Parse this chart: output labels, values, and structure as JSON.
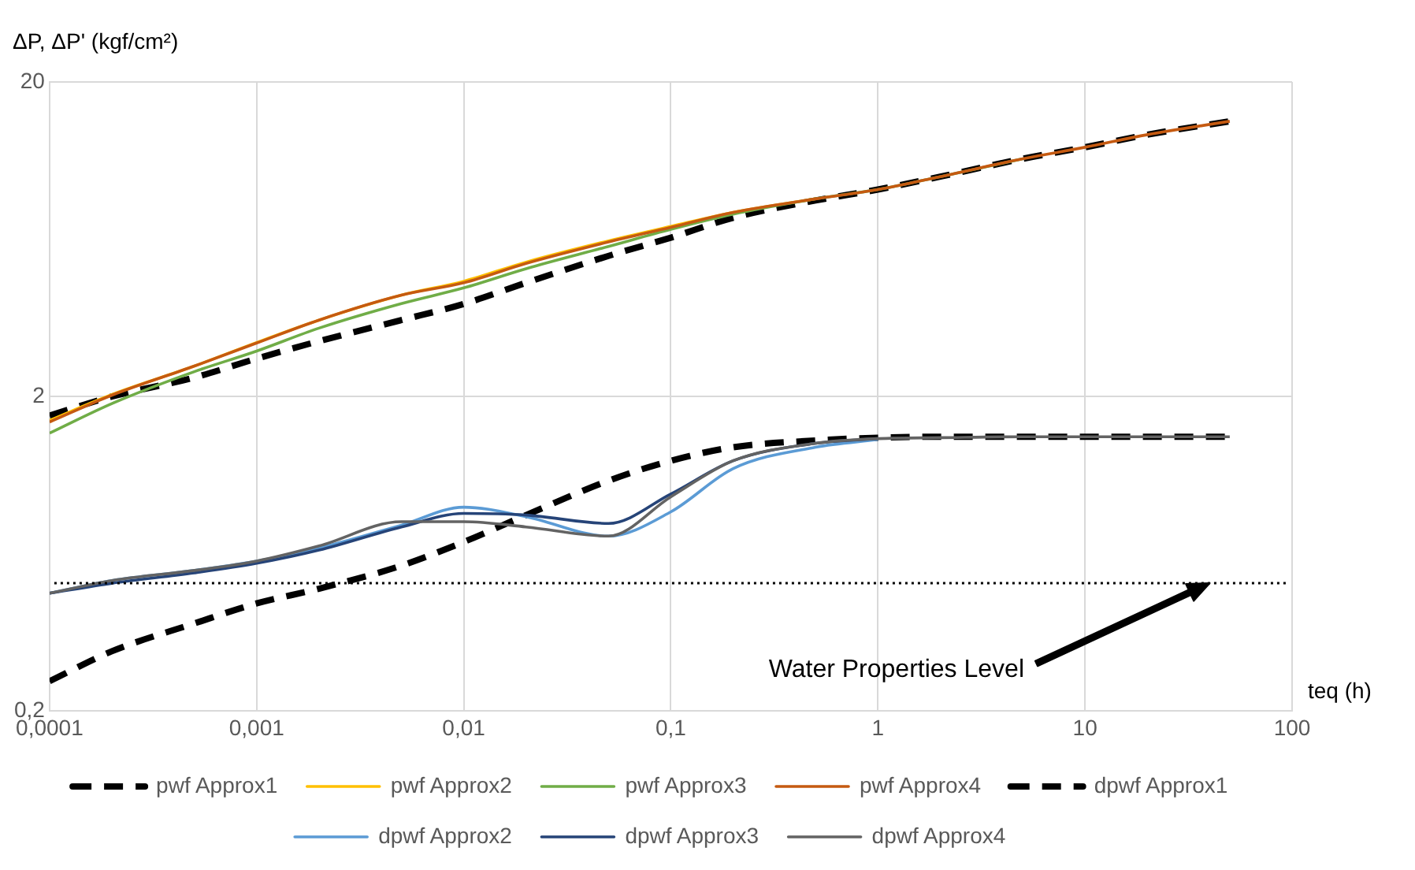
{
  "chart_data": {
    "type": "line",
    "xlabel": "teq (h)",
    "ylabel": "ΔP, ΔP' (kgf/cm²)",
    "x": [
      0.0001,
      0.0002,
      0.0005,
      0.001,
      0.002,
      0.005,
      0.01,
      0.02,
      0.05,
      0.1,
      0.2,
      0.5,
      1,
      2,
      5,
      10,
      20,
      50
    ],
    "series": [
      {
        "name": "pwf Approx1",
        "color": "#000000",
        "line_style": "dashed",
        "values": [
          1.74,
          2.0,
          2.3,
          2.64,
          3.0,
          3.5,
          3.94,
          4.6,
          5.6,
          6.4,
          7.4,
          8.4,
          9.1,
          10.0,
          11.4,
          12.4,
          13.6,
          15.0
        ]
      },
      {
        "name": "pwf Approx2",
        "color": "#ffc000",
        "line_style": "solid",
        "values": [
          1.68,
          2.03,
          2.5,
          2.97,
          3.5,
          4.2,
          4.65,
          5.35,
          6.25,
          6.95,
          7.7,
          8.5,
          null,
          null,
          null,
          null,
          null,
          null
        ]
      },
      {
        "name": "pwf Approx3",
        "color": "#70ad47",
        "line_style": "solid",
        "values": [
          1.53,
          1.9,
          2.4,
          2.79,
          3.3,
          3.95,
          4.43,
          5.1,
          6.0,
          6.8,
          7.6,
          8.5,
          9.1,
          10.0,
          11.4,
          null,
          null,
          null
        ]
      },
      {
        "name": "pwf Approx4",
        "color": "#c55a11",
        "line_style": "solid",
        "values": [
          1.66,
          2.02,
          2.5,
          2.96,
          3.5,
          4.2,
          4.6,
          5.3,
          6.2,
          6.9,
          7.7,
          8.5,
          9.1,
          10.0,
          11.4,
          12.4,
          13.6,
          15.0
        ]
      },
      {
        "name": "dpwf Approx1",
        "color": "#000000",
        "line_style": "dashed",
        "values": [
          0.249,
          0.31,
          0.38,
          0.44,
          0.49,
          0.58,
          0.69,
          0.84,
          1.08,
          1.25,
          1.38,
          1.45,
          1.48,
          1.49,
          1.49,
          1.49,
          1.49,
          1.49
        ]
      },
      {
        "name": "dpwf Approx2",
        "color": "#5b9bd5",
        "line_style": "solid",
        "values": [
          0.474,
          0.52,
          0.56,
          0.6,
          0.66,
          0.78,
          0.89,
          0.83,
          0.72,
          0.86,
          1.18,
          1.38,
          1.46,
          null,
          null,
          null,
          null,
          null
        ]
      },
      {
        "name": "dpwf Approx3",
        "color": "#264478",
        "line_style": "solid",
        "values": [
          0.474,
          0.51,
          0.55,
          0.59,
          0.65,
          0.77,
          0.85,
          0.84,
          0.79,
          0.98,
          1.25,
          1.42,
          1.47,
          null,
          null,
          null,
          null,
          null
        ]
      },
      {
        "name": "dpwf Approx4",
        "color": "#636363",
        "line_style": "solid",
        "values": [
          0.474,
          0.52,
          0.56,
          0.6,
          0.67,
          0.8,
          0.8,
          0.77,
          0.72,
          0.96,
          1.25,
          1.42,
          1.47,
          1.48,
          1.49,
          1.49,
          1.49,
          1.49
        ]
      }
    ],
    "log": "xy",
    "xlim": [
      0.0001,
      100
    ],
    "xticks": [
      {
        "value": 0.0001,
        "label": "0,0001"
      },
      {
        "value": 0.001,
        "label": "0,001"
      },
      {
        "value": 0.01,
        "label": "0,01"
      },
      {
        "value": 0.1,
        "label": "0,1"
      },
      1,
      10,
      100
    ],
    "ylim": [
      0.2,
      20
    ],
    "yticks": [
      {
        "value": 0.2,
        "label": "0,2"
      },
      2,
      20
    ],
    "grid": true,
    "legend": "bottom",
    "marker": "none",
    "ref_lines": [
      {
        "axis": "y",
        "value": 0.51,
        "line_style": "dotted",
        "color": "#000000",
        "label": "Water Properties Level"
      }
    ]
  }
}
